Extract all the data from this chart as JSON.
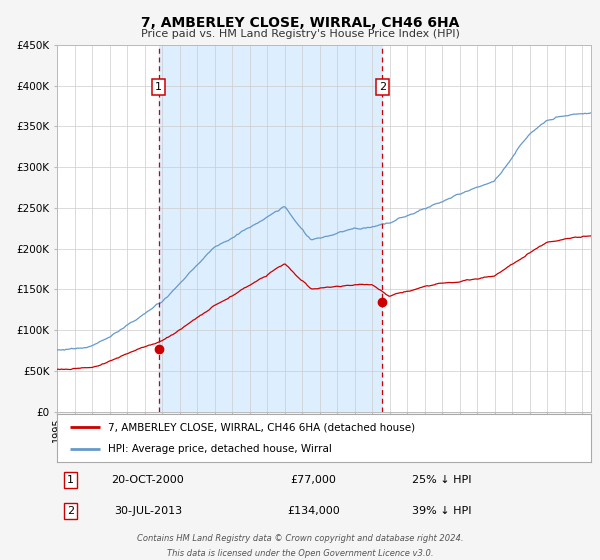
{
  "title": "7, AMBERLEY CLOSE, WIRRAL, CH46 6HA",
  "subtitle": "Price paid vs. HM Land Registry's House Price Index (HPI)",
  "ylim": [
    0,
    450000
  ],
  "yticks": [
    0,
    50000,
    100000,
    150000,
    200000,
    250000,
    300000,
    350000,
    400000,
    450000
  ],
  "ytick_labels": [
    "£0",
    "£50K",
    "£100K",
    "£150K",
    "£200K",
    "£250K",
    "£300K",
    "£350K",
    "£400K",
    "£450K"
  ],
  "xlim_start": 1995.0,
  "xlim_end": 2025.5,
  "sale1_x": 2000.8,
  "sale1_y": 77000,
  "sale2_x": 2013.58,
  "sale2_y": 134000,
  "sale1_date": "20-OCT-2000",
  "sale1_price": "£77,000",
  "sale1_hpi": "25% ↓ HPI",
  "sale2_date": "30-JUL-2013",
  "sale2_price": "£134,000",
  "sale2_hpi": "39% ↓ HPI",
  "shaded_start": 2000.8,
  "shaded_end": 2013.58,
  "line_color_sale": "#cc0000",
  "line_color_hpi": "#6699cc",
  "shade_color": "#ddeeff",
  "dashed_color": "#cc0000",
  "legend_sale_label": "7, AMBERLEY CLOSE, WIRRAL, CH46 6HA (detached house)",
  "legend_hpi_label": "HPI: Average price, detached house, Wirral",
  "footer1": "Contains HM Land Registry data © Crown copyright and database right 2024.",
  "footer2": "This data is licensed under the Open Government Licence v3.0.",
  "bg_color": "#f5f5f5",
  "plot_bg_color": "#ffffff",
  "grid_color": "#cccccc"
}
